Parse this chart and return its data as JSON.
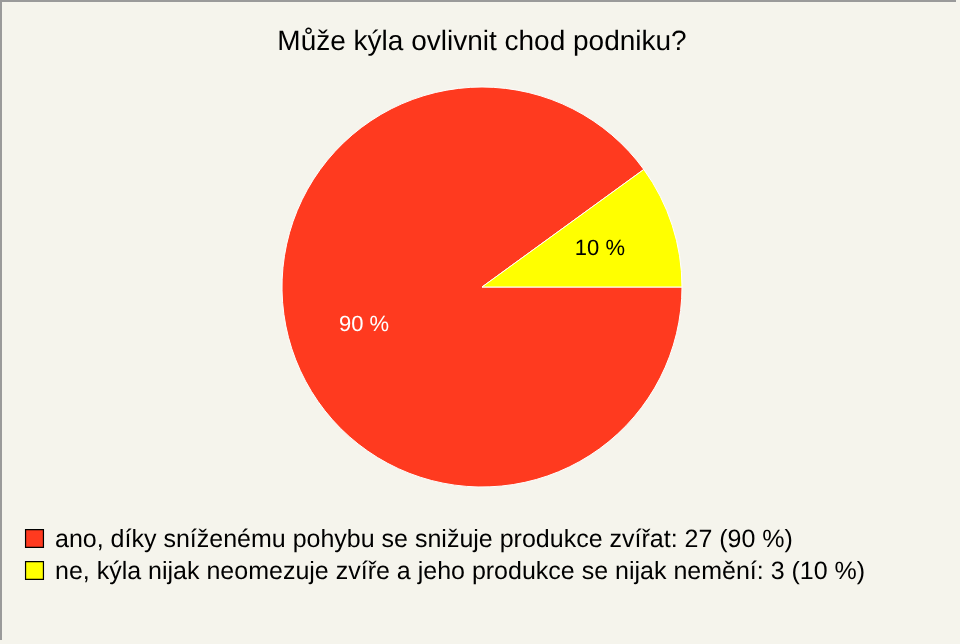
{
  "chart_data": {
    "type": "pie",
    "title": "Může kýla ovlivnit chod podniku?",
    "categories": [
      "ano, díky sníženému pohybu se snižuje produkce zvířat: 27 (90 %)",
      "ne, kýla nijak neomezuje zvíře a jeho produkce se nijak nemění: 3 (10 %)"
    ],
    "values": [
      90,
      10
    ],
    "colors": [
      "#ff3a1f",
      "#ffff00"
    ],
    "value_labels": [
      "90 %",
      "10 %"
    ],
    "legend": "bottom left"
  }
}
